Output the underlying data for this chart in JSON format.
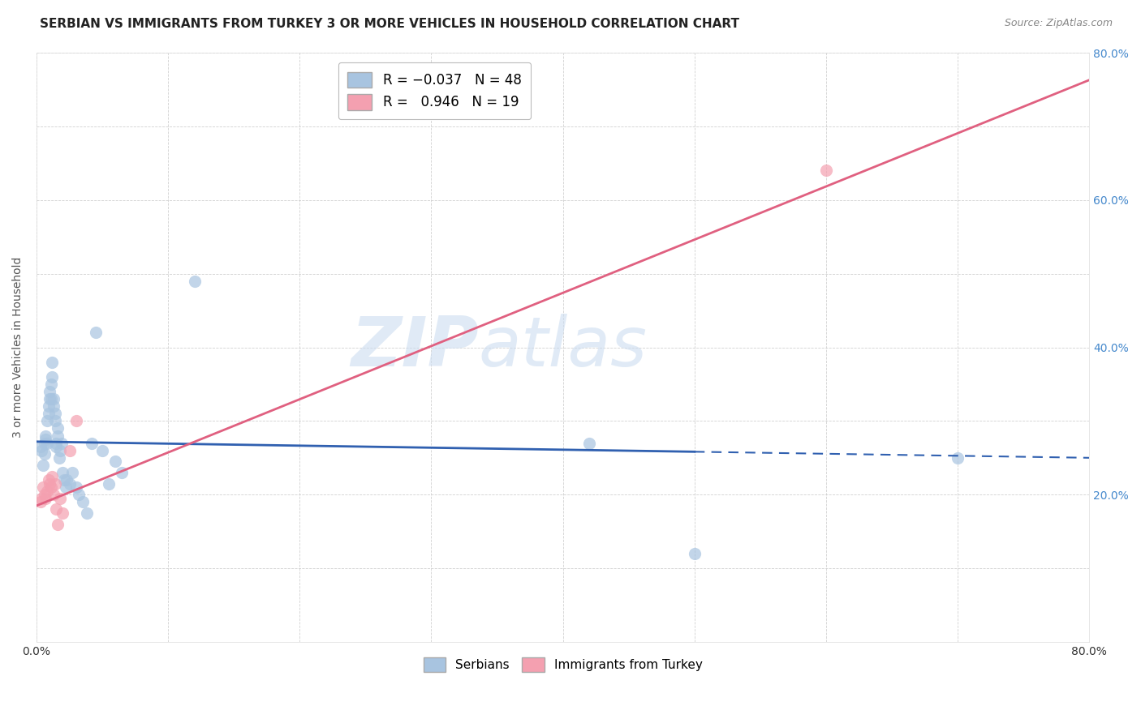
{
  "title": "SERBIAN VS IMMIGRANTS FROM TURKEY 3 OR MORE VEHICLES IN HOUSEHOLD CORRELATION CHART",
  "source": "Source: ZipAtlas.com",
  "ylabel": "3 or more Vehicles in Household",
  "xlim": [
    0.0,
    0.8
  ],
  "ylim": [
    0.0,
    0.8
  ],
  "xticks": [
    0.0,
    0.1,
    0.2,
    0.3,
    0.4,
    0.5,
    0.6,
    0.7,
    0.8
  ],
  "yticks": [
    0.0,
    0.1,
    0.2,
    0.3,
    0.4,
    0.5,
    0.6,
    0.7,
    0.8
  ],
  "watermark_zip": "ZIP",
  "watermark_atlas": "atlas",
  "serbian_color": "#a8c4e0",
  "turkey_color": "#f4a0b0",
  "line_serbian_color": "#3060b0",
  "line_turkey_color": "#e06080",
  "background_color": "#ffffff",
  "grid_color": "#cccccc",
  "title_color": "#222222",
  "axis_label_color": "#555555",
  "right_ytick_color": "#4488cc",
  "serbian_points_x": [
    0.003,
    0.004,
    0.005,
    0.006,
    0.006,
    0.007,
    0.007,
    0.008,
    0.008,
    0.009,
    0.009,
    0.01,
    0.01,
    0.011,
    0.011,
    0.012,
    0.012,
    0.013,
    0.013,
    0.014,
    0.014,
    0.015,
    0.015,
    0.016,
    0.016,
    0.017,
    0.018,
    0.019,
    0.02,
    0.021,
    0.022,
    0.023,
    0.025,
    0.027,
    0.03,
    0.032,
    0.035,
    0.038,
    0.042,
    0.045,
    0.05,
    0.055,
    0.06,
    0.065,
    0.12,
    0.42,
    0.5,
    0.7
  ],
  "serbian_points_y": [
    0.265,
    0.26,
    0.24,
    0.255,
    0.27,
    0.275,
    0.28,
    0.27,
    0.3,
    0.31,
    0.32,
    0.33,
    0.34,
    0.33,
    0.35,
    0.36,
    0.38,
    0.32,
    0.33,
    0.3,
    0.31,
    0.27,
    0.265,
    0.28,
    0.29,
    0.25,
    0.26,
    0.27,
    0.23,
    0.22,
    0.21,
    0.22,
    0.215,
    0.23,
    0.21,
    0.2,
    0.19,
    0.175,
    0.27,
    0.42,
    0.26,
    0.215,
    0.245,
    0.23,
    0.49,
    0.27,
    0.12,
    0.25
  ],
  "turkey_points_x": [
    0.003,
    0.004,
    0.005,
    0.006,
    0.007,
    0.008,
    0.009,
    0.01,
    0.011,
    0.012,
    0.013,
    0.014,
    0.015,
    0.016,
    0.018,
    0.02,
    0.025,
    0.03,
    0.6
  ],
  "turkey_points_y": [
    0.19,
    0.195,
    0.21,
    0.2,
    0.195,
    0.205,
    0.22,
    0.215,
    0.21,
    0.225,
    0.2,
    0.215,
    0.18,
    0.16,
    0.195,
    0.175,
    0.26,
    0.3,
    0.64
  ],
  "serbian_line_solid_end": 0.5,
  "serbian_line_x0": 0.0,
  "serbian_line_x1": 0.8,
  "serbian_line_y0": 0.272,
  "serbian_line_y1": 0.25,
  "turkey_line_x0": 0.0,
  "turkey_line_x1": 0.8,
  "turkey_line_y0": 0.185,
  "turkey_line_y1": 0.763
}
